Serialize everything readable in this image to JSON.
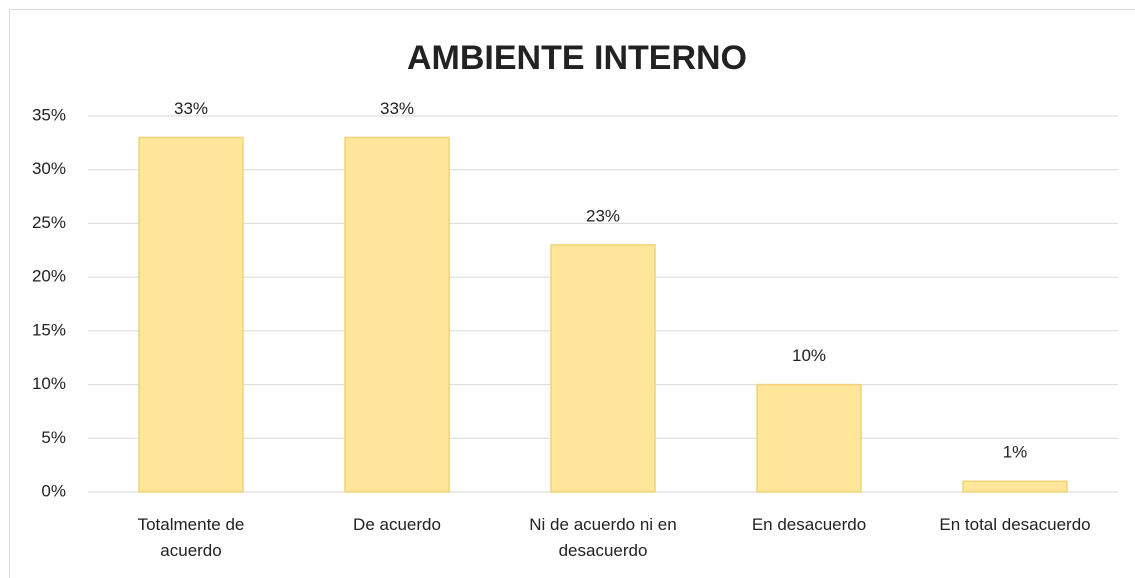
{
  "chart_data": {
    "type": "bar",
    "title": "AMBIENTE INTERNO",
    "categories": [
      "Totalmente de\nacuerdo",
      "De acuerdo",
      "Ni de acuerdo ni en\ndesacuerdo",
      "En desacuerdo",
      "En total desacuerdo"
    ],
    "values": [
      33,
      33,
      23,
      10,
      1
    ],
    "value_labels": [
      "33%",
      "33%",
      "23%",
      "10%",
      "1%"
    ],
    "color": "#ffe699",
    "ylim": [
      0,
      35
    ],
    "yticks": [
      {
        "value": 0,
        "label": "0%"
      },
      {
        "value": 5,
        "label": "5%"
      },
      {
        "value": 10,
        "label": "10%"
      },
      {
        "value": 15,
        "label": "15%"
      },
      {
        "value": 20,
        "label": "20%"
      },
      {
        "value": 25,
        "label": "25%"
      },
      {
        "value": 30,
        "label": "30%"
      },
      {
        "value": 35,
        "label": "35%"
      }
    ],
    "grid": true
  }
}
